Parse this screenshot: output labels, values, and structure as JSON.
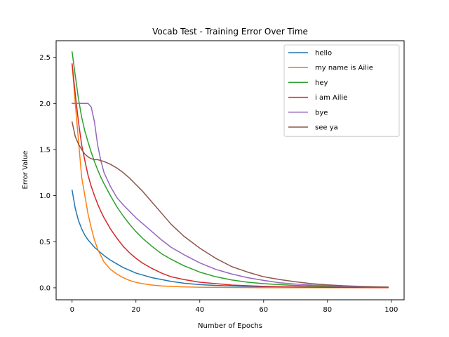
{
  "chart_data": {
    "type": "line",
    "title": "Vocab Test - Training Error Over Time",
    "xlabel": "Number of Epochs",
    "ylabel": "Error Value",
    "xlim": [
      -5,
      104
    ],
    "ylim": [
      -0.13,
      2.68
    ],
    "xticks": [
      0,
      20,
      40,
      60,
      80,
      100
    ],
    "yticks": [
      0.0,
      0.5,
      1.0,
      1.5,
      2.0,
      2.5
    ],
    "xtick_labels": [
      "0",
      "20",
      "40",
      "60",
      "80",
      "100"
    ],
    "ytick_labels": [
      "0.0",
      "0.5",
      "1.0",
      "1.5",
      "2.0",
      "2.5"
    ],
    "grid": false,
    "legend_position": "top-right",
    "x": [
      0,
      1,
      2,
      3,
      4,
      5,
      6,
      7,
      8,
      9,
      10,
      12,
      14,
      16,
      18,
      20,
      22,
      25,
      28,
      31,
      35,
      40,
      45,
      50,
      55,
      60,
      65,
      70,
      75,
      80,
      85,
      90,
      95,
      99
    ],
    "series": [
      {
        "name": "hello",
        "color": "#1f77b4",
        "values": [
          1.06,
          0.86,
          0.73,
          0.64,
          0.57,
          0.52,
          0.48,
          0.44,
          0.41,
          0.38,
          0.35,
          0.3,
          0.26,
          0.22,
          0.19,
          0.16,
          0.14,
          0.11,
          0.09,
          0.07,
          0.05,
          0.035,
          0.025,
          0.02,
          0.015,
          0.012,
          0.01,
          0.008,
          0.006,
          0.005,
          0.004,
          0.003,
          0.002,
          0.002
        ]
      },
      {
        "name": "my name is Ailie",
        "color": "#ff7f0e",
        "values": [
          2.43,
          2.0,
          1.6,
          1.2,
          1.0,
          0.8,
          0.65,
          0.52,
          0.42,
          0.35,
          0.28,
          0.2,
          0.15,
          0.11,
          0.08,
          0.06,
          0.045,
          0.03,
          0.02,
          0.015,
          0.01,
          0.006,
          0.004,
          0.003,
          0.002,
          0.0015,
          0.001,
          0.001,
          0.001,
          0.001,
          0.001,
          0.001,
          0.001,
          0.001
        ]
      },
      {
        "name": "hey",
        "color": "#2ca02c",
        "values": [
          2.56,
          2.3,
          2.05,
          1.85,
          1.7,
          1.58,
          1.47,
          1.37,
          1.28,
          1.2,
          1.13,
          1.0,
          0.88,
          0.78,
          0.69,
          0.61,
          0.54,
          0.45,
          0.37,
          0.31,
          0.24,
          0.17,
          0.12,
          0.085,
          0.06,
          0.045,
          0.035,
          0.025,
          0.02,
          0.015,
          0.012,
          0.01,
          0.008,
          0.006
        ]
      },
      {
        "name": "i am Ailie",
        "color": "#d62728",
        "values": [
          2.43,
          2.1,
          1.8,
          1.55,
          1.38,
          1.22,
          1.1,
          1.0,
          0.91,
          0.83,
          0.76,
          0.64,
          0.54,
          0.45,
          0.38,
          0.32,
          0.27,
          0.21,
          0.16,
          0.12,
          0.09,
          0.06,
          0.045,
          0.03,
          0.022,
          0.016,
          0.012,
          0.009,
          0.007,
          0.005,
          0.004,
          0.003,
          0.002,
          0.002
        ]
      },
      {
        "name": "bye",
        "color": "#9467bd",
        "values": [
          2.0,
          2.0,
          2.0,
          2.0,
          2.0,
          2.0,
          1.96,
          1.8,
          1.55,
          1.38,
          1.25,
          1.1,
          0.98,
          0.9,
          0.83,
          0.76,
          0.7,
          0.61,
          0.52,
          0.44,
          0.36,
          0.27,
          0.2,
          0.15,
          0.11,
          0.08,
          0.055,
          0.04,
          0.03,
          0.022,
          0.016,
          0.012,
          0.009,
          0.007
        ]
      },
      {
        "name": "see ya",
        "color": "#8c564b",
        "values": [
          1.8,
          1.64,
          1.56,
          1.5,
          1.45,
          1.42,
          1.4,
          1.39,
          1.39,
          1.38,
          1.37,
          1.34,
          1.3,
          1.25,
          1.19,
          1.12,
          1.05,
          0.93,
          0.81,
          0.69,
          0.56,
          0.43,
          0.32,
          0.23,
          0.17,
          0.12,
          0.09,
          0.065,
          0.045,
          0.032,
          0.022,
          0.016,
          0.011,
          0.008
        ]
      }
    ]
  }
}
